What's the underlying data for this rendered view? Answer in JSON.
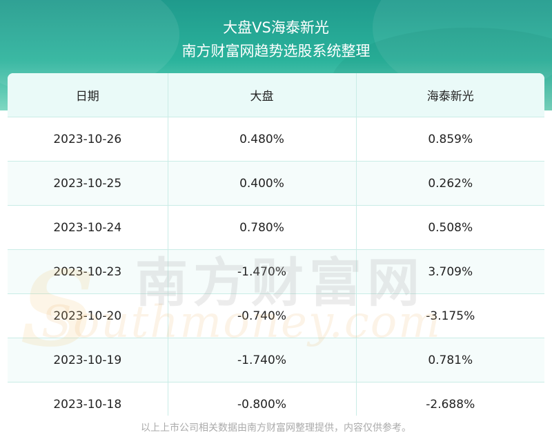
{
  "header": {
    "title": "大盘VS海泰新光",
    "subtitle": "南方财富网趋势选股系统整理"
  },
  "table": {
    "columns": [
      "日期",
      "大盘",
      "海泰新光"
    ],
    "rows": [
      [
        "2023-10-26",
        "0.480%",
        "0.859%"
      ],
      [
        "2023-10-25",
        "0.400%",
        "0.262%"
      ],
      [
        "2023-10-24",
        "0.780%",
        "0.508%"
      ],
      [
        "2023-10-23",
        "-1.470%",
        "3.709%"
      ],
      [
        "2023-10-20",
        "-0.740%",
        "-3.175%"
      ],
      [
        "2023-10-19",
        "-1.740%",
        "0.781%"
      ],
      [
        "2023-10-18",
        "-0.800%",
        "-2.688%"
      ]
    ]
  },
  "watermark": {
    "cn": "南方财富网",
    "en": "Southmoney.com"
  },
  "footer": {
    "note": "以上上市公司相关数据由南方财富网整理提供，内容仅供参考。"
  },
  "colors": {
    "header_green": "#2bb39c",
    "header_row_bg": "#eafaf8",
    "grid_line": "#c9ece6"
  }
}
